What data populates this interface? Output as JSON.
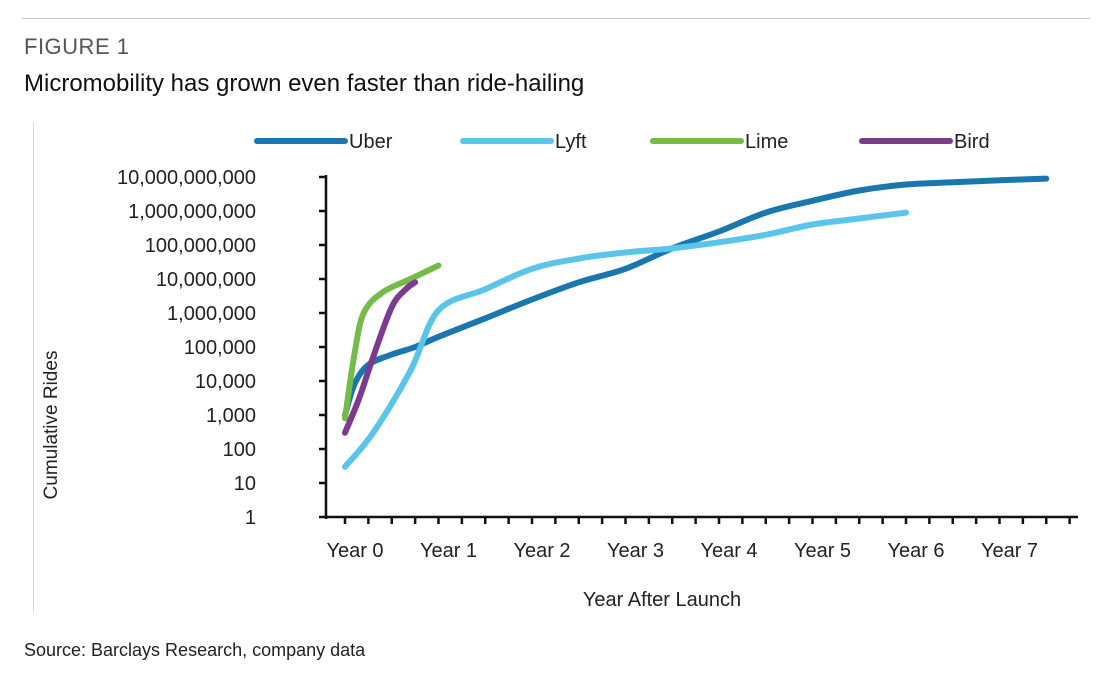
{
  "header": {
    "figure_label": "FIGURE 1",
    "title": "Micromobility has grown even faster than ride-hailing"
  },
  "footer": {
    "source": "Source: Barclays Research, company data"
  },
  "chart_data": {
    "type": "line",
    "xlabel": "Year After Launch",
    "ylabel": "Cumulative Rides",
    "y_scale": "log",
    "ylim": [
      1,
      10000000000
    ],
    "y_ticks": [
      {
        "value": 1,
        "label": "1"
      },
      {
        "value": 10,
        "label": "10"
      },
      {
        "value": 100,
        "label": "100"
      },
      {
        "value": 1000,
        "label": "1,000"
      },
      {
        "value": 10000,
        "label": "10,000"
      },
      {
        "value": 100000,
        "label": "100,000"
      },
      {
        "value": 1000000,
        "label": "1,000,000"
      },
      {
        "value": 10000000,
        "label": "10,000,000"
      },
      {
        "value": 100000000,
        "label": "100,000,000"
      },
      {
        "value": 1000000000,
        "label": "1,000,000,000"
      },
      {
        "value": 10000000000,
        "label": "10,000,000,000"
      }
    ],
    "x_ticks": [
      {
        "value": 0,
        "label": "Year 0"
      },
      {
        "value": 1,
        "label": "Year 1"
      },
      {
        "value": 2,
        "label": "Year 2"
      },
      {
        "value": 3,
        "label": "Year 3"
      },
      {
        "value": 4,
        "label": "Year 4"
      },
      {
        "value": 5,
        "label": "Year 5"
      },
      {
        "value": 6,
        "label": "Year 6"
      },
      {
        "value": 7,
        "label": "Year 7"
      }
    ],
    "xlim": [
      -0.25,
      7.75
    ],
    "legend_position": "top",
    "series": [
      {
        "name": "Uber",
        "color": "#1a77ad",
        "points": [
          [
            0.0,
            1000
          ],
          [
            0.1,
            8000
          ],
          [
            0.25,
            30000
          ],
          [
            0.5,
            60000
          ],
          [
            0.75,
            100000
          ],
          [
            1.0,
            200000
          ],
          [
            1.5,
            700000
          ],
          [
            2.0,
            2500000
          ],
          [
            2.5,
            8000000
          ],
          [
            3.0,
            20000000
          ],
          [
            3.5,
            80000000
          ],
          [
            4.0,
            250000000
          ],
          [
            4.5,
            900000000
          ],
          [
            5.0,
            2000000000
          ],
          [
            5.5,
            4000000000
          ],
          [
            6.0,
            6000000000
          ],
          [
            6.5,
            7000000000
          ],
          [
            7.0,
            8000000000
          ],
          [
            7.5,
            9000000000
          ]
        ]
      },
      {
        "name": "Lyft",
        "color": "#5bc4ea",
        "points": [
          [
            0.0,
            30
          ],
          [
            0.3,
            300
          ],
          [
            0.7,
            20000
          ],
          [
            1.0,
            1200000
          ],
          [
            1.5,
            5000000
          ],
          [
            2.0,
            20000000
          ],
          [
            2.5,
            40000000
          ],
          [
            3.0,
            60000000
          ],
          [
            3.5,
            80000000
          ],
          [
            4.0,
            120000000
          ],
          [
            4.5,
            200000000
          ],
          [
            5.0,
            400000000
          ],
          [
            5.5,
            600000000
          ],
          [
            6.0,
            900000000
          ]
        ]
      },
      {
        "name": "Lime",
        "color": "#74bb48",
        "points": [
          [
            0.0,
            800
          ],
          [
            0.1,
            60000
          ],
          [
            0.2,
            1000000
          ],
          [
            0.4,
            4000000
          ],
          [
            0.7,
            10000000
          ],
          [
            1.0,
            25000000
          ]
        ]
      },
      {
        "name": "Bird",
        "color": "#7d3b8f",
        "points": [
          [
            0.0,
            300
          ],
          [
            0.15,
            3000
          ],
          [
            0.3,
            50000
          ],
          [
            0.5,
            1500000
          ],
          [
            0.65,
            5000000
          ],
          [
            0.75,
            8000000
          ]
        ]
      }
    ]
  }
}
